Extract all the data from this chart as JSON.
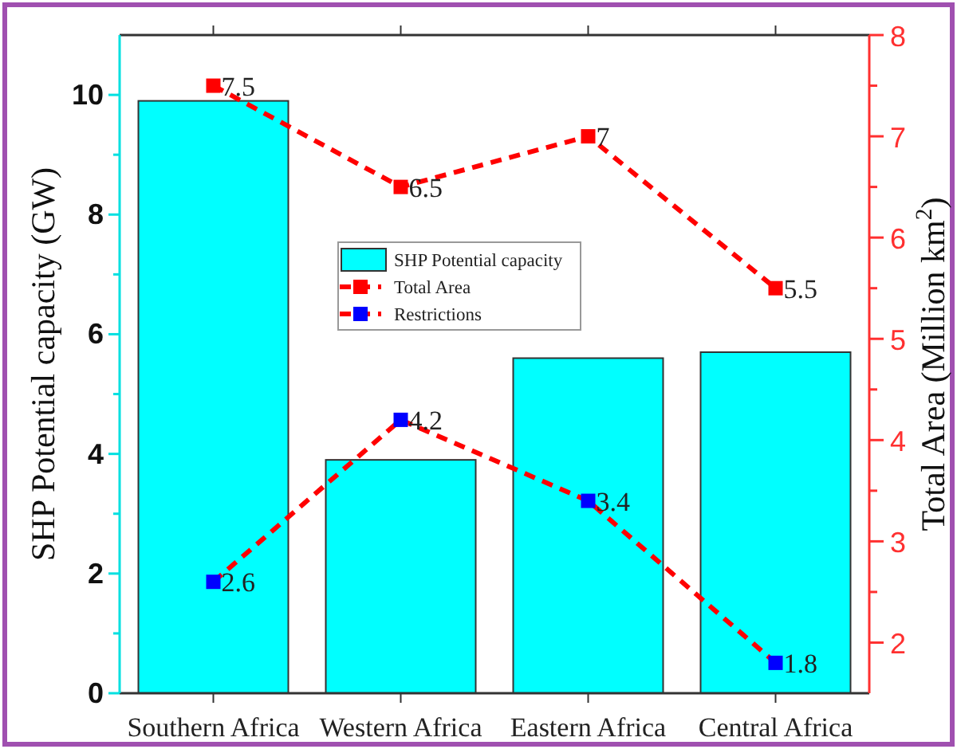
{
  "chart_data": {
    "type": "bar",
    "ylabel": "SHP Potential capacity (GW)",
    "y2label": "Total Area (Million km$^{2}$)",
    "categories": [
      "Southern Africa",
      "Western Africa",
      "Eastern Africa",
      "Central Africa"
    ],
    "series": [
      {
        "name": "SHP Potential capacity",
        "color": "#00ffff",
        "values": [
          9.9,
          3.9,
          5.6,
          5.7
        ]
      },
      {
        "name": "Total Area",
        "type": "line",
        "axis": "y2",
        "color": "#ff0000",
        "values": [
          7.5,
          6.5,
          7,
          5.5
        ],
        "value_labels": [
          "7.5",
          "6.5",
          "7",
          "5.5"
        ]
      },
      {
        "name": "Restrictions",
        "type": "line",
        "axis": "y2",
        "color": "#ff0000",
        "colors": [
          "#0000ff",
          "#0000ff",
          "#0000ff",
          "#0000ff"
        ],
        "values": [
          2.6,
          4.2,
          3.4,
          1.8
        ],
        "value_labels": [
          "2.6",
          "4.2",
          "3.4",
          "1.8"
        ]
      }
    ],
    "ylim": [
      0,
      11
    ],
    "yticks": [
      0,
      {
        "value": 1,
        "label": null
      },
      2,
      {
        "value": 3,
        "label": null
      },
      4,
      {
        "value": 5,
        "label": null
      },
      6,
      {
        "value": 7,
        "label": null
      },
      8,
      {
        "value": 9,
        "label": null
      },
      10
    ],
    "y2lim": [
      1.5,
      8
    ],
    "y2ticks": [
      2,
      {
        "value": 2.5,
        "label": null
      },
      3,
      {
        "value": 3.5,
        "label": null
      },
      4,
      {
        "value": 4.5,
        "label": null
      },
      5,
      {
        "value": 5.5,
        "label": null
      },
      6,
      {
        "value": 6.5,
        "label": null
      },
      7,
      {
        "value": 7.5,
        "label": null
      },
      8
    ],
    "marker": "square",
    "line_style": "dashed",
    "legend": "top",
    "grid": false
  }
}
